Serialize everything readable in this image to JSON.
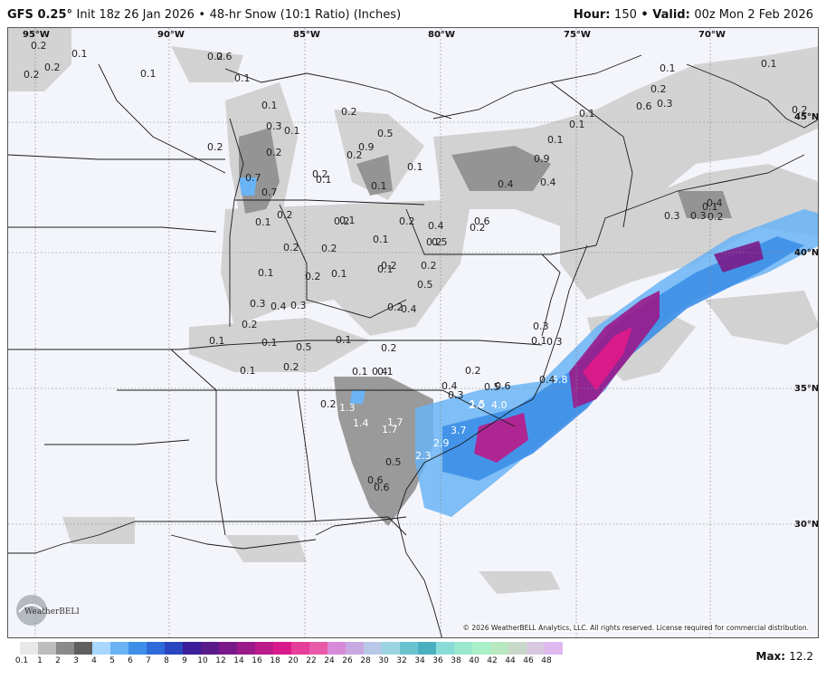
{
  "header": {
    "model": "GFS 0.25°",
    "init": "Init 18z 26 Jan 2026",
    "separator": "•",
    "product": "48-hr Snow (10:1 Ratio) (Inches)",
    "hour_label": "Hour:",
    "hour_value": "150",
    "valid_label": "• Valid:",
    "valid_value": "00z Mon 2 Feb 2026"
  },
  "map": {
    "longitude_labels": [
      "95°W",
      "90°W",
      "85°W",
      "80°W",
      "75°W",
      "70°W"
    ],
    "latitude_labels": [
      "45°N",
      "40°N",
      "35°N",
      "30°N"
    ],
    "value_labels": [
      "0.2",
      "0.1",
      "0.2",
      "0.2",
      "0.1",
      "0.2",
      "0.1",
      "0.6",
      "0.1",
      "0.2",
      "0.3",
      "0.1",
      "0.2",
      "0.7",
      "0.7",
      "0.2",
      "0.1",
      "0.2",
      "0.1",
      "0.9",
      "0.5",
      "0.2",
      "0.1",
      "0.2",
      "0.1",
      "0.2",
      "0.1",
      "0.1",
      "0.2",
      "0.2",
      "0.1",
      "0.2",
      "0.2",
      "0.1",
      "0.3",
      "0.3",
      "0.2",
      "0.1",
      "0.2",
      "0.2",
      "0.2",
      "0.5",
      "0.1",
      "0.4",
      "0.4",
      "0.2",
      "0.2",
      "0.1",
      "0.1",
      "0.5",
      "0.1",
      "0.2",
      "0.1",
      "0.1",
      "0.4",
      "0.2",
      "0.3",
      "1.5",
      "0.5",
      "0.6",
      "0.2",
      "1.3",
      "1.4",
      "1.7",
      "1.7",
      "2.0",
      "4.0",
      "3.7",
      "2.9",
      "2.3",
      "0.5",
      "0.6",
      "0.6",
      "5.8",
      "0.3",
      "0.1",
      "0.3",
      "0.4",
      "0.4",
      "0.4",
      "0.5",
      "0.6",
      "0.4",
      "0.9",
      "0.4",
      "0.1",
      "0.1",
      "0.1",
      "0.1",
      "0.2",
      "0.6",
      "0.3",
      "0.1",
      "0.2",
      "0.3",
      "0.3",
      "0.4",
      "0.2",
      "0.1",
      "0.2"
    ],
    "copyright": "© 2026 WeatherBELL Analytics, LLC. All rights reserved. License required for commercial distribution.",
    "logo_text": "WeatherBELL"
  },
  "legend": {
    "ticks": [
      "0.1",
      "1",
      "2",
      "3",
      "4",
      "5",
      "6",
      "7",
      "8",
      "9",
      "10",
      "12",
      "14",
      "16",
      "18",
      "20",
      "22",
      "24",
      "26",
      "28",
      "30",
      "32",
      "34",
      "36",
      "38",
      "40",
      "42",
      "44",
      "46",
      "48"
    ],
    "colors": [
      "#e8e8e8",
      "#bdbdbd",
      "#8a8a8a",
      "#5f5f5f",
      "#a8d8ff",
      "#6ab4f5",
      "#3d8fe8",
      "#2e6ad8",
      "#2a45c0",
      "#3a1e9a",
      "#5a1a8a",
      "#7a1a8a",
      "#9a1a8a",
      "#bb1a8a",
      "#d91a8a",
      "#e63d9a",
      "#e85aa8",
      "#d88ad8",
      "#c8a8e0",
      "#b8c8e8",
      "#9ad4e0",
      "#6ac4d0",
      "#4ab0c0",
      "#8adcd8",
      "#9ae8d0",
      "#aaf0c8",
      "#b8e8c0",
      "#c8d8c8",
      "#d8c8e0",
      "#e0b8f0"
    ],
    "max_label": "Max:",
    "max_value": "12.2"
  }
}
